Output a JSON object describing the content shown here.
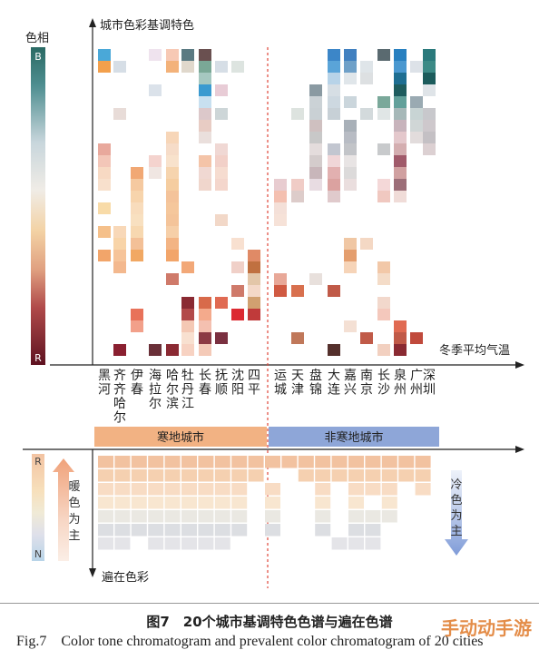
{
  "top_axis_label": "城市色彩基调特色",
  "hue_label": "色相",
  "hue_top": "B",
  "hue_bottom": "R",
  "x_axis_label": "冬季平均气温",
  "bottom_axis_label": "遍在色彩",
  "cold_group": "寒地城市",
  "warm_group": "非寒地城市",
  "left_arrow_text": "暖色为主",
  "right_arrow_text": "冷色为主",
  "scale2_top": "R",
  "scale2_bottom": "N",
  "caption_cn": "图7　20个城市基调特色色谱与遍在色谱",
  "caption_en": "Fig.7　Color tone chromatogram and prevalent color chromatogram of 20 cities",
  "watermark": "手动动手游",
  "cities": [
    {
      "name": "黑河",
      "chars": [
        "黑",
        "河"
      ]
    },
    {
      "name": "齐齐哈尔",
      "chars": [
        "齐",
        "齐",
        "哈",
        "尔"
      ]
    },
    {
      "name": "伊春",
      "chars": [
        "伊",
        "春"
      ]
    },
    {
      "name": "海拉尔",
      "chars": [
        "海",
        "拉",
        "尔"
      ]
    },
    {
      "name": "哈尔滨",
      "chars": [
        "哈",
        "尔",
        "滨"
      ]
    },
    {
      "name": "牡丹江",
      "chars": [
        "牡",
        "丹",
        "江"
      ]
    },
    {
      "name": "长春",
      "chars": [
        "长",
        "春"
      ]
    },
    {
      "name": "抚顺",
      "chars": [
        "抚",
        "顺"
      ]
    },
    {
      "name": "沈阳",
      "chars": [
        "沈",
        "阳"
      ]
    },
    {
      "name": "四平",
      "chars": [
        "四",
        "平"
      ]
    },
    {
      "name": "运城",
      "chars": [
        "运",
        "城"
      ]
    },
    {
      "name": "天津",
      "chars": [
        "天",
        "津"
      ]
    },
    {
      "name": "盘锦",
      "chars": [
        "盘",
        "锦"
      ]
    },
    {
      "name": "大连",
      "chars": [
        "大",
        "连"
      ]
    },
    {
      "name": "嘉兴",
      "chars": [
        "嘉",
        "兴"
      ]
    },
    {
      "name": "南京",
      "chars": [
        "南",
        "京"
      ]
    },
    {
      "name": "长沙",
      "chars": [
        "长",
        "沙"
      ]
    },
    {
      "name": "泉州",
      "chars": [
        "泉",
        "州"
      ]
    },
    {
      "name": "广州",
      "chars": [
        "广",
        "州"
      ]
    },
    {
      "name": "深圳",
      "chars": [
        "深",
        "圳"
      ]
    }
  ],
  "colors": {
    "axis": "#222222",
    "divider": "#e0463a",
    "cold_band": "#f2b283",
    "warm_band": "#8ea6d8",
    "left_arrow": "#f0b08a",
    "right_arrow": "#8faadf"
  },
  "chart_data": {
    "type": "heatmap",
    "x_categories": [
      "黑河",
      "齐齐哈尔",
      "伊春",
      "海拉尔",
      "哈尔滨",
      "牡丹江",
      "长春",
      "抚顺",
      "沈阳",
      "四平",
      "运城",
      "天津",
      "盘锦",
      "大连",
      "嘉兴",
      "南京",
      "长沙",
      "泉州",
      "广州",
      "深圳"
    ],
    "y_scale": {
      "top": "B",
      "bottom": "R",
      "steps": 26
    },
    "tone_swatches": [
      {
        "city": "黑河",
        "cells": [
          [
            0,
            "#4aa8d8"
          ],
          [
            1,
            "#f3a04c"
          ],
          [
            8,
            "#e8a89c"
          ],
          [
            9,
            "#f3c6b8"
          ],
          [
            10,
            "#f7d9c3"
          ],
          [
            11,
            "#f8e0cc"
          ],
          [
            13,
            "#f8dba8"
          ],
          [
            15,
            "#f5c08a"
          ],
          [
            17,
            "#f2a56a"
          ]
        ]
      },
      {
        "city": "齐齐哈尔",
        "cells": [
          [
            1,
            "#d6dee6"
          ],
          [
            5,
            "#e8dcd8"
          ],
          [
            15,
            "#f8d8b8"
          ],
          [
            16,
            "#f8d4a8"
          ],
          [
            17,
            "#f6c49a"
          ],
          [
            18,
            "#f3b88e"
          ],
          [
            25,
            "#8a2030"
          ]
        ]
      },
      {
        "city": "伊春",
        "cells": [
          [
            10,
            "#f1a874"
          ],
          [
            11,
            "#f5c9a0"
          ],
          [
            12,
            "#f7d4ac"
          ],
          [
            13,
            "#f8dcbc"
          ],
          [
            14,
            "#f8e0c0"
          ],
          [
            15,
            "#f7d8b0"
          ],
          [
            16,
            "#f3c097"
          ],
          [
            17,
            "#f1a863"
          ],
          [
            22,
            "#e8725a"
          ],
          [
            23,
            "#f2a08a"
          ]
        ]
      },
      {
        "city": "海拉尔",
        "cells": [
          [
            0,
            "#efe3ee"
          ],
          [
            3,
            "#dbe2ea"
          ],
          [
            9,
            "#f4d3ce"
          ],
          [
            10,
            "#f0e6e2"
          ],
          [
            25,
            "#6a3038"
          ]
        ]
      },
      {
        "city": "哈尔滨",
        "cells": [
          [
            0,
            "#f7c9b5"
          ],
          [
            1,
            "#f3b27a"
          ],
          [
            7,
            "#f7d6b8"
          ],
          [
            8,
            "#f6dcc8"
          ],
          [
            9,
            "#f8e2cc"
          ],
          [
            10,
            "#f6d4ae"
          ],
          [
            11,
            "#f5cda0"
          ],
          [
            12,
            "#f4c39a"
          ],
          [
            13,
            "#f5c79c"
          ],
          [
            14,
            "#f4c49a"
          ],
          [
            15,
            "#f6cfa8"
          ],
          [
            16,
            "#f3b484"
          ],
          [
            17,
            "#f2a56a"
          ],
          [
            19,
            "#cf7a6a"
          ],
          [
            25,
            "#8b2a33"
          ]
        ]
      },
      {
        "city": "牡丹江",
        "cells": [
          [
            0,
            "#5a7a82"
          ],
          [
            1,
            "#e0d8cc"
          ],
          [
            18,
            "#f2a878"
          ],
          [
            21,
            "#8a2a32"
          ],
          [
            22,
            "#b24a4a"
          ],
          [
            23,
            "#f4c8b4"
          ],
          [
            24,
            "#f8e0d0"
          ],
          [
            25,
            "#f7d2c2"
          ]
        ]
      },
      {
        "city": "长春",
        "cells": [
          [
            0,
            "#6a5050"
          ],
          [
            1,
            "#7aa896"
          ],
          [
            2,
            "#a6c8c0"
          ],
          [
            3,
            "#3a9ad0"
          ],
          [
            4,
            "#c8e0f0"
          ],
          [
            5,
            "#dcc8ca"
          ],
          [
            6,
            "#e8ccc4"
          ],
          [
            7,
            "#eadfdc"
          ],
          [
            9,
            "#f4c4a8"
          ],
          [
            10,
            "#f0d8d2"
          ],
          [
            11,
            "#f0d6cc"
          ],
          [
            21,
            "#d86a4a"
          ],
          [
            22,
            "#f4aa8c"
          ],
          [
            23,
            "#f4c0b0"
          ],
          [
            24,
            "#8c3a44"
          ],
          [
            25,
            "#f4cab8"
          ]
        ]
      },
      {
        "city": "抚顺",
        "cells": [
          [
            1,
            "#d6dee6"
          ],
          [
            3,
            "#e8ccd6"
          ],
          [
            5,
            "#cdd6d8"
          ],
          [
            8,
            "#f0d8d4"
          ],
          [
            9,
            "#f2d0c8"
          ],
          [
            10,
            "#f6dcd0"
          ],
          [
            11,
            "#f4d6cc"
          ],
          [
            14,
            "#f2d8c8"
          ],
          [
            21,
            "#e06a52"
          ],
          [
            24,
            "#7a3040"
          ]
        ]
      },
      {
        "city": "沈阳",
        "cells": [
          [
            1,
            "#dde4e0"
          ],
          [
            16,
            "#f8e0d0"
          ],
          [
            18,
            "#f0d0c8"
          ],
          [
            20,
            "#cf7a6a"
          ],
          [
            22,
            "#dc2a32"
          ]
        ]
      },
      {
        "city": "四平",
        "cells": [
          [
            17,
            "#e08a66"
          ],
          [
            18,
            "#c07040"
          ],
          [
            19,
            "#e3c6a8"
          ],
          [
            20,
            "#f4d8c8"
          ],
          [
            21,
            "#d1a070"
          ],
          [
            22,
            "#c03a3a"
          ]
        ]
      },
      {
        "city": "运城",
        "cells": [
          [
            11,
            "#e8ccd0"
          ],
          [
            12,
            "#f4c0b0"
          ],
          [
            13,
            "#f4e0d8"
          ],
          [
            14,
            "#f6e2d8"
          ],
          [
            19,
            "#e8a898"
          ],
          [
            20,
            "#d05a42"
          ]
        ]
      },
      {
        "city": "天津",
        "cells": [
          [
            5,
            "#dde3df"
          ],
          [
            11,
            "#f0ccc6"
          ],
          [
            12,
            "#ddccca"
          ],
          [
            20,
            "#d8704e"
          ],
          [
            24,
            "#c0785a"
          ]
        ]
      },
      {
        "city": "盘锦",
        "cells": [
          [
            3,
            "#8a9aa2"
          ],
          [
            4,
            "#cbd2d6"
          ],
          [
            5,
            "#c9d0d4"
          ],
          [
            6,
            "#cfc0c0"
          ],
          [
            7,
            "#c8c8c8"
          ],
          [
            8,
            "#e4dcdc"
          ],
          [
            9,
            "#d4cccc"
          ],
          [
            10,
            "#c8b6ba"
          ],
          [
            11,
            "#e8dce2"
          ],
          [
            19,
            "#e8e0dc"
          ]
        ]
      },
      {
        "city": "大连",
        "cells": [
          [
            0,
            "#3c86c8"
          ],
          [
            1,
            "#5aa4d8"
          ],
          [
            2,
            "#b7d3e8"
          ],
          [
            3,
            "#d6dee4"
          ],
          [
            4,
            "#cdd8e0"
          ],
          [
            5,
            "#c7d0d6"
          ],
          [
            8,
            "#c2c6d0"
          ],
          [
            9,
            "#f0d6d8"
          ],
          [
            10,
            "#e2b0b0"
          ],
          [
            11,
            "#dba2a0"
          ],
          [
            12,
            "#e0cacc"
          ],
          [
            20,
            "#c05a48"
          ],
          [
            25,
            "#54302c"
          ]
        ]
      },
      {
        "city": "嘉兴",
        "cells": [
          [
            0,
            "#4080c0"
          ],
          [
            1,
            "#6ea0c8"
          ],
          [
            2,
            "#e0e6ea"
          ],
          [
            4,
            "#cbd6dc"
          ],
          [
            6,
            "#a8b0b8"
          ],
          [
            7,
            "#b8bcc4"
          ],
          [
            8,
            "#c2c4c8"
          ],
          [
            9,
            "#e8e4e4"
          ],
          [
            10,
            "#dcdada"
          ],
          [
            11,
            "#eadede"
          ],
          [
            16,
            "#f0c7a4"
          ],
          [
            17,
            "#e49e6e"
          ],
          [
            18,
            "#f6d4b8"
          ],
          [
            23,
            "#f4e0d4"
          ]
        ]
      },
      {
        "city": "南京",
        "cells": [
          [
            1,
            "#dfe5e9"
          ],
          [
            2,
            "#dde0e2"
          ],
          [
            5,
            "#d3dadc"
          ],
          [
            16,
            "#f4d8c4"
          ],
          [
            24,
            "#c05a48"
          ]
        ]
      },
      {
        "city": "长沙",
        "cells": [
          [
            0,
            "#5a6a70"
          ],
          [
            4,
            "#7aa89a"
          ],
          [
            5,
            "#e0e6e6"
          ],
          [
            8,
            "#c8cacc"
          ],
          [
            11,
            "#f4d8d8"
          ],
          [
            12,
            "#f0c8c0"
          ],
          [
            18,
            "#f2c8a8"
          ],
          [
            19,
            "#f4dcc8"
          ],
          [
            21,
            "#f2d8cc"
          ],
          [
            22,
            "#f4c8bc"
          ],
          [
            25,
            "#f2d0c0"
          ]
        ]
      },
      {
        "city": "泉州",
        "cells": [
          [
            0,
            "#2880c0"
          ],
          [
            1,
            "#4a98d0"
          ],
          [
            2,
            "#1e6e92"
          ],
          [
            3,
            "#1e5c5e"
          ],
          [
            4,
            "#62a09a"
          ],
          [
            5,
            "#a6b8b8"
          ],
          [
            6,
            "#c8b4bc"
          ],
          [
            7,
            "#e4c8cc"
          ],
          [
            8,
            "#d4aeb0"
          ],
          [
            9,
            "#a05a6a"
          ],
          [
            10,
            "#d0a0a0"
          ],
          [
            11,
            "#9c6e78"
          ],
          [
            12,
            "#f0dcd8"
          ],
          [
            23,
            "#e06a52"
          ],
          [
            24,
            "#c05a48"
          ],
          [
            25,
            "#8a2a32"
          ]
        ]
      },
      {
        "city": "广州",
        "cells": [
          [
            1,
            "#dde2e8"
          ],
          [
            4,
            "#9aaab2"
          ],
          [
            5,
            "#c8d4d4"
          ],
          [
            6,
            "#d0d6d6"
          ],
          [
            7,
            "#e2dcdc"
          ],
          [
            24,
            "#c04a3c"
          ]
        ]
      },
      {
        "city": "深圳",
        "cells": [
          [
            0,
            "#2b7a7c"
          ],
          [
            1,
            "#3c8a86"
          ],
          [
            2,
            "#1c5c5c"
          ],
          [
            3,
            "#dfe4e8"
          ],
          [
            5,
            "#c8c8cc"
          ],
          [
            6,
            "#cec8cc"
          ],
          [
            7,
            "#c4c0c4"
          ],
          [
            8,
            "#dcd0d2"
          ]
        ]
      }
    ],
    "prevalent_rows": [
      {
        "color": "#f2c2a0",
        "cities": [
          0,
          1,
          2,
          3,
          4,
          5,
          6,
          7,
          8,
          9,
          10,
          11,
          12,
          13,
          14,
          15,
          16,
          17,
          18,
          19
        ]
      },
      {
        "color": "#f5d0b0",
        "cities": [
          0,
          1,
          2,
          3,
          4,
          5,
          6,
          7,
          8,
          9,
          12,
          13,
          14,
          15,
          16,
          17,
          18,
          19
        ]
      },
      {
        "color": "#f8dcc4",
        "cities": [
          0,
          1,
          2,
          3,
          4,
          5,
          6,
          7,
          8,
          10,
          13,
          15,
          16,
          17,
          19
        ]
      },
      {
        "color": "#f8e6d0",
        "cities": [
          0,
          1,
          2,
          3,
          4,
          5,
          6,
          7,
          8,
          10,
          13,
          15,
          17
        ]
      },
      {
        "color": "#eae8e2",
        "cities": [
          0,
          1,
          2,
          3,
          4,
          5,
          6,
          7,
          8,
          10,
          13,
          15,
          16,
          17
        ]
      },
      {
        "color": "#dcdee2",
        "cities": [
          0,
          1,
          2,
          3,
          4,
          5,
          6,
          7,
          8,
          10,
          13,
          15,
          16
        ]
      },
      {
        "color": "#e4e4e8",
        "cities": [
          0,
          1,
          3,
          4,
          5,
          6,
          7,
          14,
          15,
          16
        ]
      }
    ]
  }
}
